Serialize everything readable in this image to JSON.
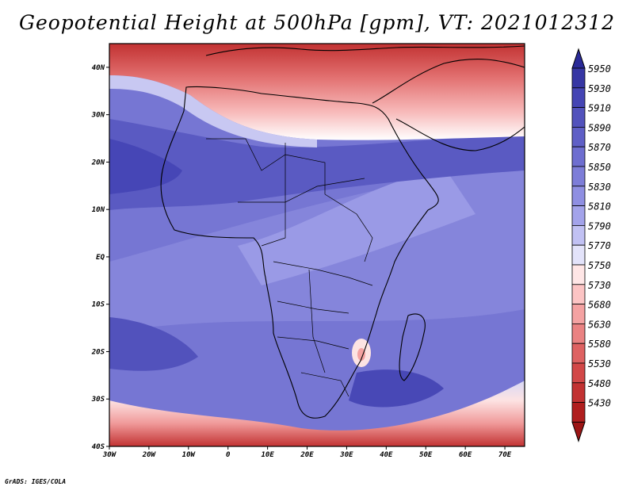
{
  "title": "Geopotential Height at 500hPa [gpm], VT: 2021012312",
  "credit": "GrADS: IGES/COLA",
  "map": {
    "region": "Africa",
    "lon_range": [
      -30,
      75
    ],
    "lat_range": [
      -40,
      45
    ],
    "lat_labels": [
      "40N",
      "30N",
      "20N",
      "10N",
      "EQ",
      "10S",
      "20S",
      "30S",
      "40S"
    ],
    "lat_values": [
      40,
      30,
      20,
      10,
      0,
      -10,
      -20,
      -30,
      -40
    ],
    "lon_labels": [
      "30W",
      "20W",
      "10W",
      "0",
      "10E",
      "20E",
      "30E",
      "40E",
      "50E",
      "60E",
      "70E"
    ],
    "lon_values": [
      -30,
      -20,
      -10,
      0,
      10,
      20,
      30,
      40,
      50,
      60,
      70
    ]
  },
  "colorbar": {
    "levels": [
      "5950",
      "5930",
      "5910",
      "5890",
      "5870",
      "5850",
      "5830",
      "5810",
      "5790",
      "5770",
      "5750",
      "5730",
      "5680",
      "5630",
      "5580",
      "5530",
      "5480",
      "5430"
    ],
    "colors": [
      "#3636a4",
      "#4545b4",
      "#5252bc",
      "#5f5fc6",
      "#6e6ed0",
      "#7d7dd8",
      "#8f8fe2",
      "#a3a3ea",
      "#c1c1f3",
      "#e3e3fa",
      "#ffe6e6",
      "#fcc4c4",
      "#f4a2a2",
      "#ea8282",
      "#de6262",
      "#d24848",
      "#c23232",
      "#b01e1e"
    ],
    "top_color": "#2a2a98",
    "bottom_color": "#9c1515"
  }
}
